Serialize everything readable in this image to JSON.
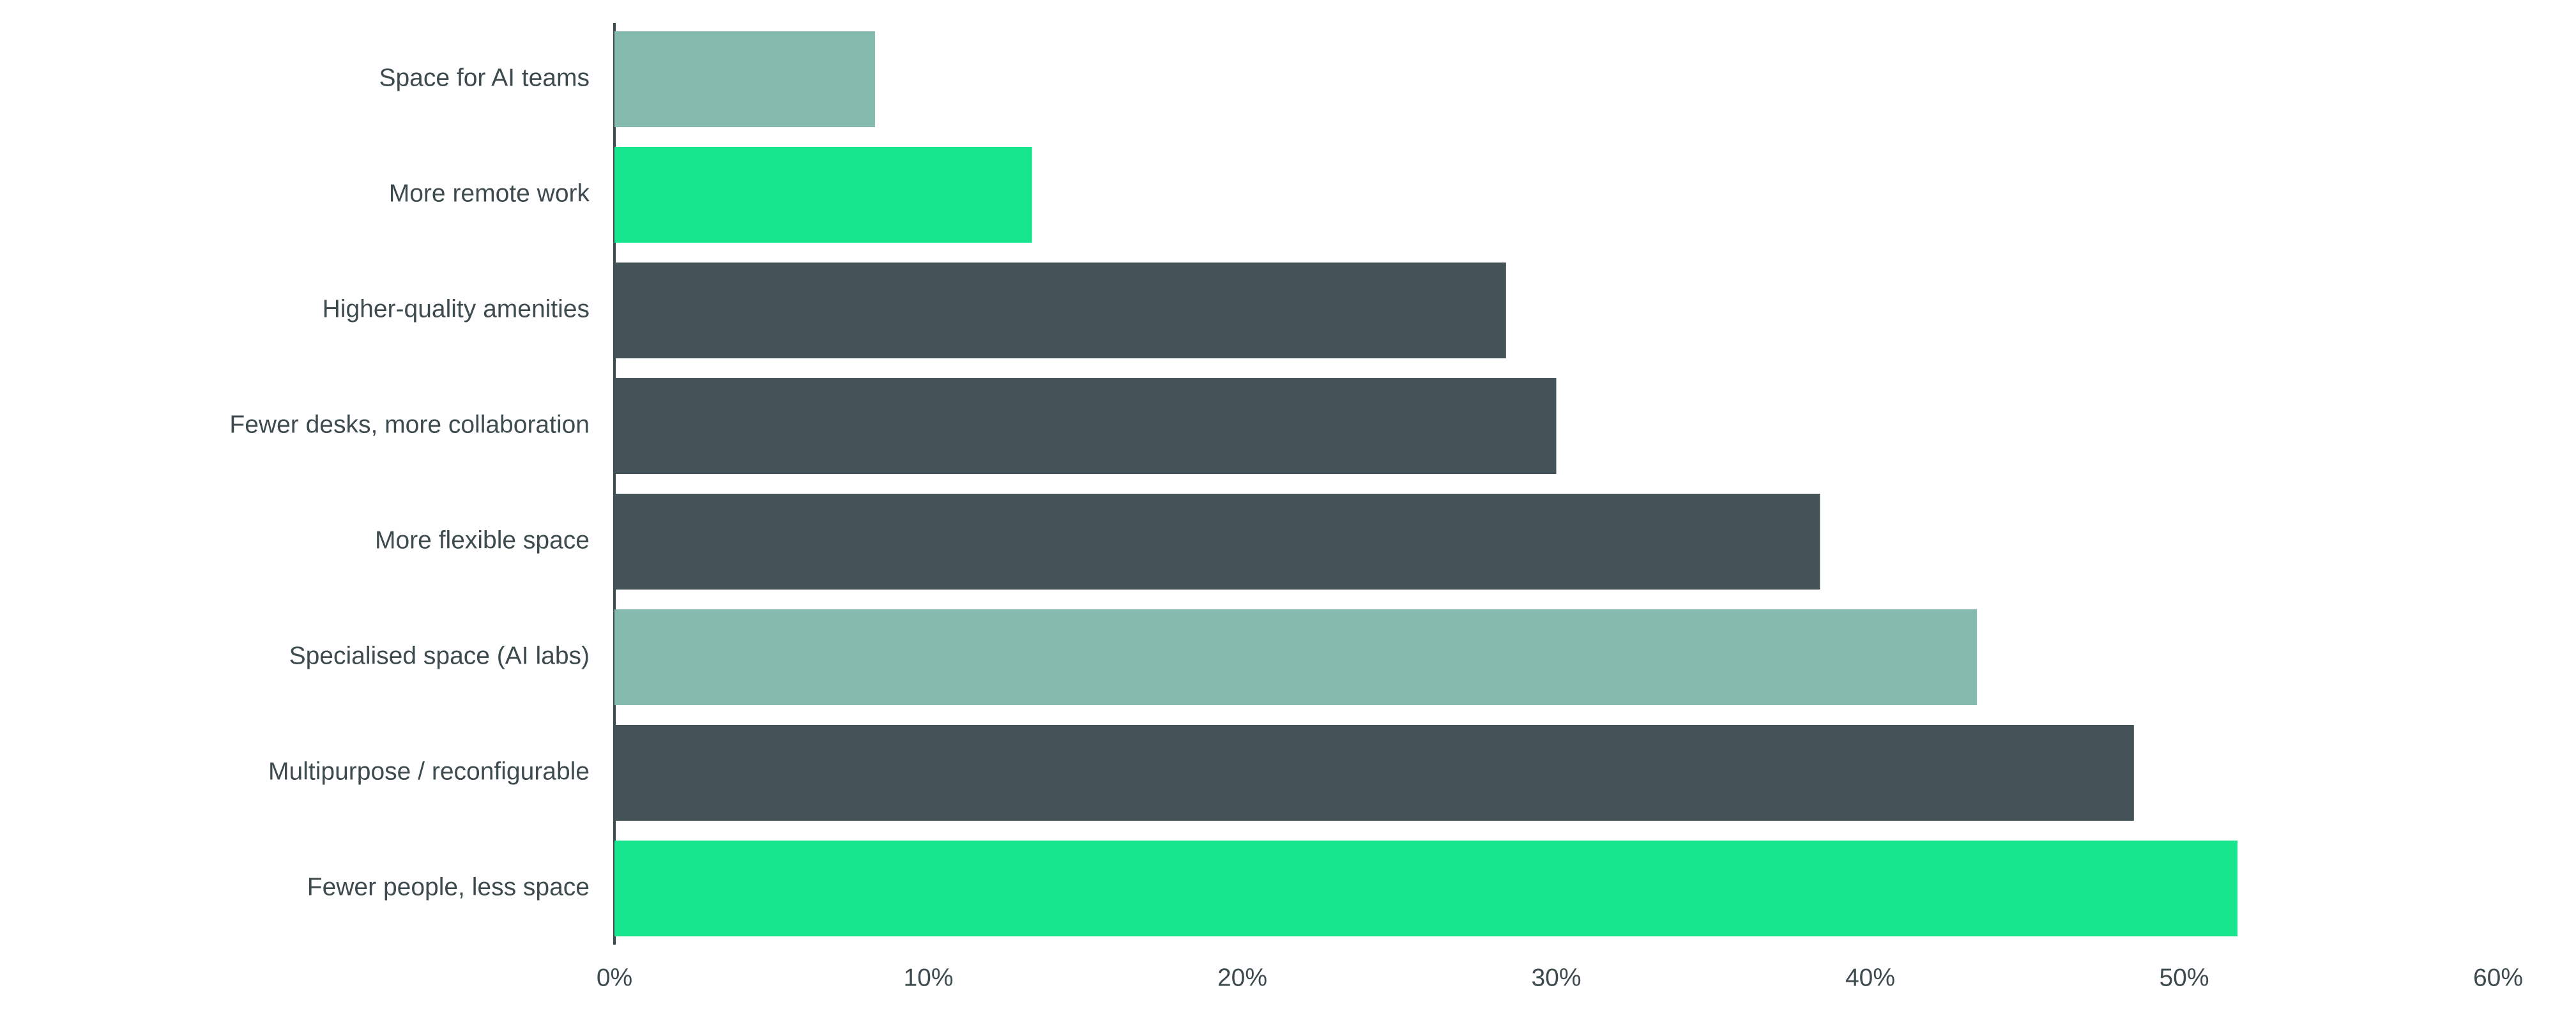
{
  "chart_data": {
    "type": "barh",
    "categories": [
      "Space for AI teams",
      "More remote work",
      "Higher-quality amenities",
      "Fewer desks, more collaboration",
      "More flexible space",
      "Specialised space (AI labs)",
      "Multipurpose / reconfigurable",
      "Fewer people, less space"
    ],
    "values": [
      8.3,
      13.3,
      28.4,
      30,
      38.4,
      43.4,
      48.4,
      51.7
    ],
    "colors": [
      "#84bbae",
      "#17e68f",
      "#435357",
      "#435357",
      "#435357",
      "#84bbae",
      "#435357",
      "#17e68f"
    ],
    "xlim": [
      0,
      60
    ],
    "xticks": [
      {
        "value": 0,
        "label": "0%"
      },
      {
        "value": 10,
        "label": "10%"
      },
      {
        "value": 20,
        "label": "20%"
      },
      {
        "value": 30,
        "label": "30%"
      },
      {
        "value": 40,
        "label": "40%"
      },
      {
        "value": 50,
        "label": "50%"
      },
      {
        "value": 60,
        "label": "60%"
      }
    ]
  }
}
